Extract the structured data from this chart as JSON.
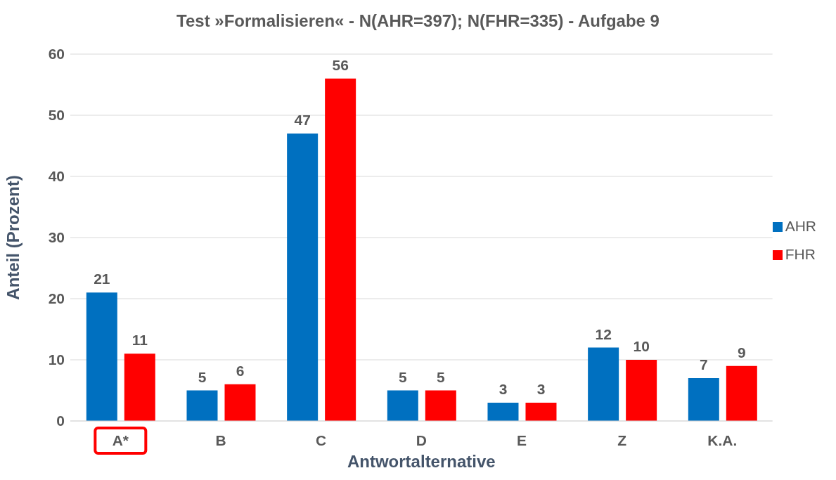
{
  "chart_data": {
    "type": "bar",
    "title": "Test »Formalisieren« - N(AHR=397); N(FHR=335) - Aufgabe 9",
    "xlabel": "Antwortalternative",
    "ylabel": "Anteil (Prozent)",
    "categories": [
      "A*",
      "B",
      "C",
      "D",
      "E",
      "Z",
      "K.A."
    ],
    "series": [
      {
        "name": "AHR",
        "color": "#0070c0",
        "values": [
          21,
          5,
          47,
          5,
          3,
          12,
          7
        ]
      },
      {
        "name": "FHR",
        "color": "#ff0000",
        "values": [
          11,
          6,
          56,
          5,
          3,
          10,
          9
        ]
      }
    ],
    "ylim": [
      0,
      60
    ],
    "yticks": [
      0,
      10,
      20,
      30,
      40,
      50,
      60
    ],
    "grid": "y",
    "legend": "right",
    "data_labels": true
  }
}
